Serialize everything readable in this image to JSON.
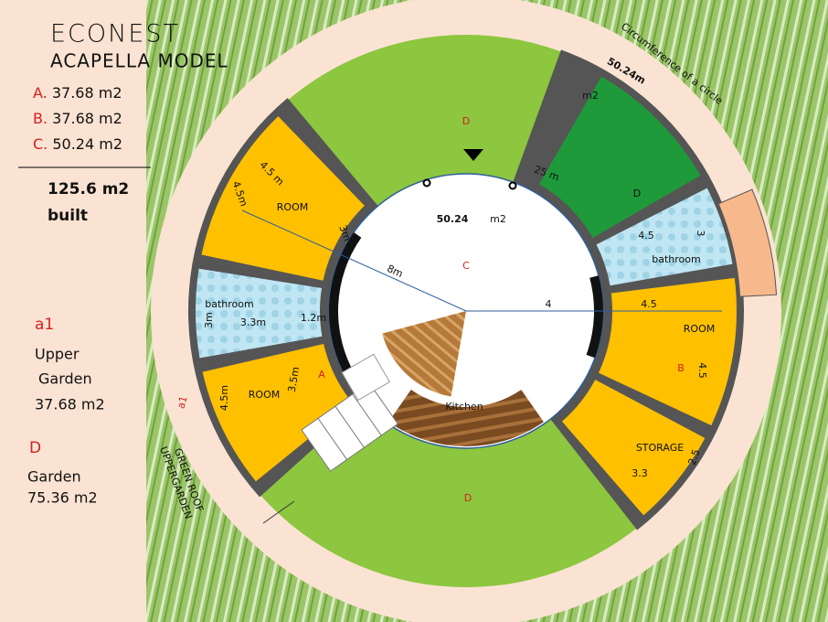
{
  "header": {
    "title": "ECONEST",
    "subtitle": "ACAPELLA MODEL"
  },
  "areas": {
    "items": [
      {
        "letter": "A.",
        "value": "37.68 m2"
      },
      {
        "letter": "B.",
        "value": "37.68 m2"
      },
      {
        "letter": "C.",
        "value": "50.24 m2"
      }
    ],
    "total": "125.6  m2",
    "total_note": "built"
  },
  "legend": [
    {
      "code": "a1",
      "lines": [
        "Upper",
        "Garden",
        "37.68  m2"
      ]
    },
    {
      "code": "D",
      "lines": [
        "Garden",
        "75.36  m2"
      ]
    }
  ],
  "plan": {
    "circumference": {
      "text": "Circumference of a circle",
      "value": "50.24m",
      "unit": "m2"
    },
    "garden_top": "D",
    "garden_green": "D",
    "garden_bottom": "D",
    "radius_label": "25 m",
    "center": {
      "value": "50.24",
      "unit": "m2",
      "letter": "C"
    },
    "diag_8m": "8m",
    "line_4": "4",
    "room_b": {
      "top": "4.5",
      "name": "ROOM",
      "letter": "B",
      "side": "4.5"
    },
    "storage": {
      "name": "STORAGE",
      "side": "2.5",
      "bottom": "3.3"
    },
    "bath_right": {
      "top": "4.5",
      "name": "bathroom",
      "side": "3"
    },
    "room_left_top": {
      "outer": "4.5m",
      "top": "4.5 m",
      "name": "ROOM",
      "inner": "3m"
    },
    "bath_left": {
      "name": "bathroom",
      "side": "3m",
      "width": "3.3m",
      "door": "1.2m"
    },
    "room_a": {
      "outer": "4.5m",
      "name": "ROOM",
      "inner": "3.5m",
      "letter": "A"
    },
    "kitchen": "Kitchen",
    "upper_garden": {
      "code": "a1",
      "line1": "GREEN ROOF",
      "line2": "UPPERGARDEN"
    }
  }
}
